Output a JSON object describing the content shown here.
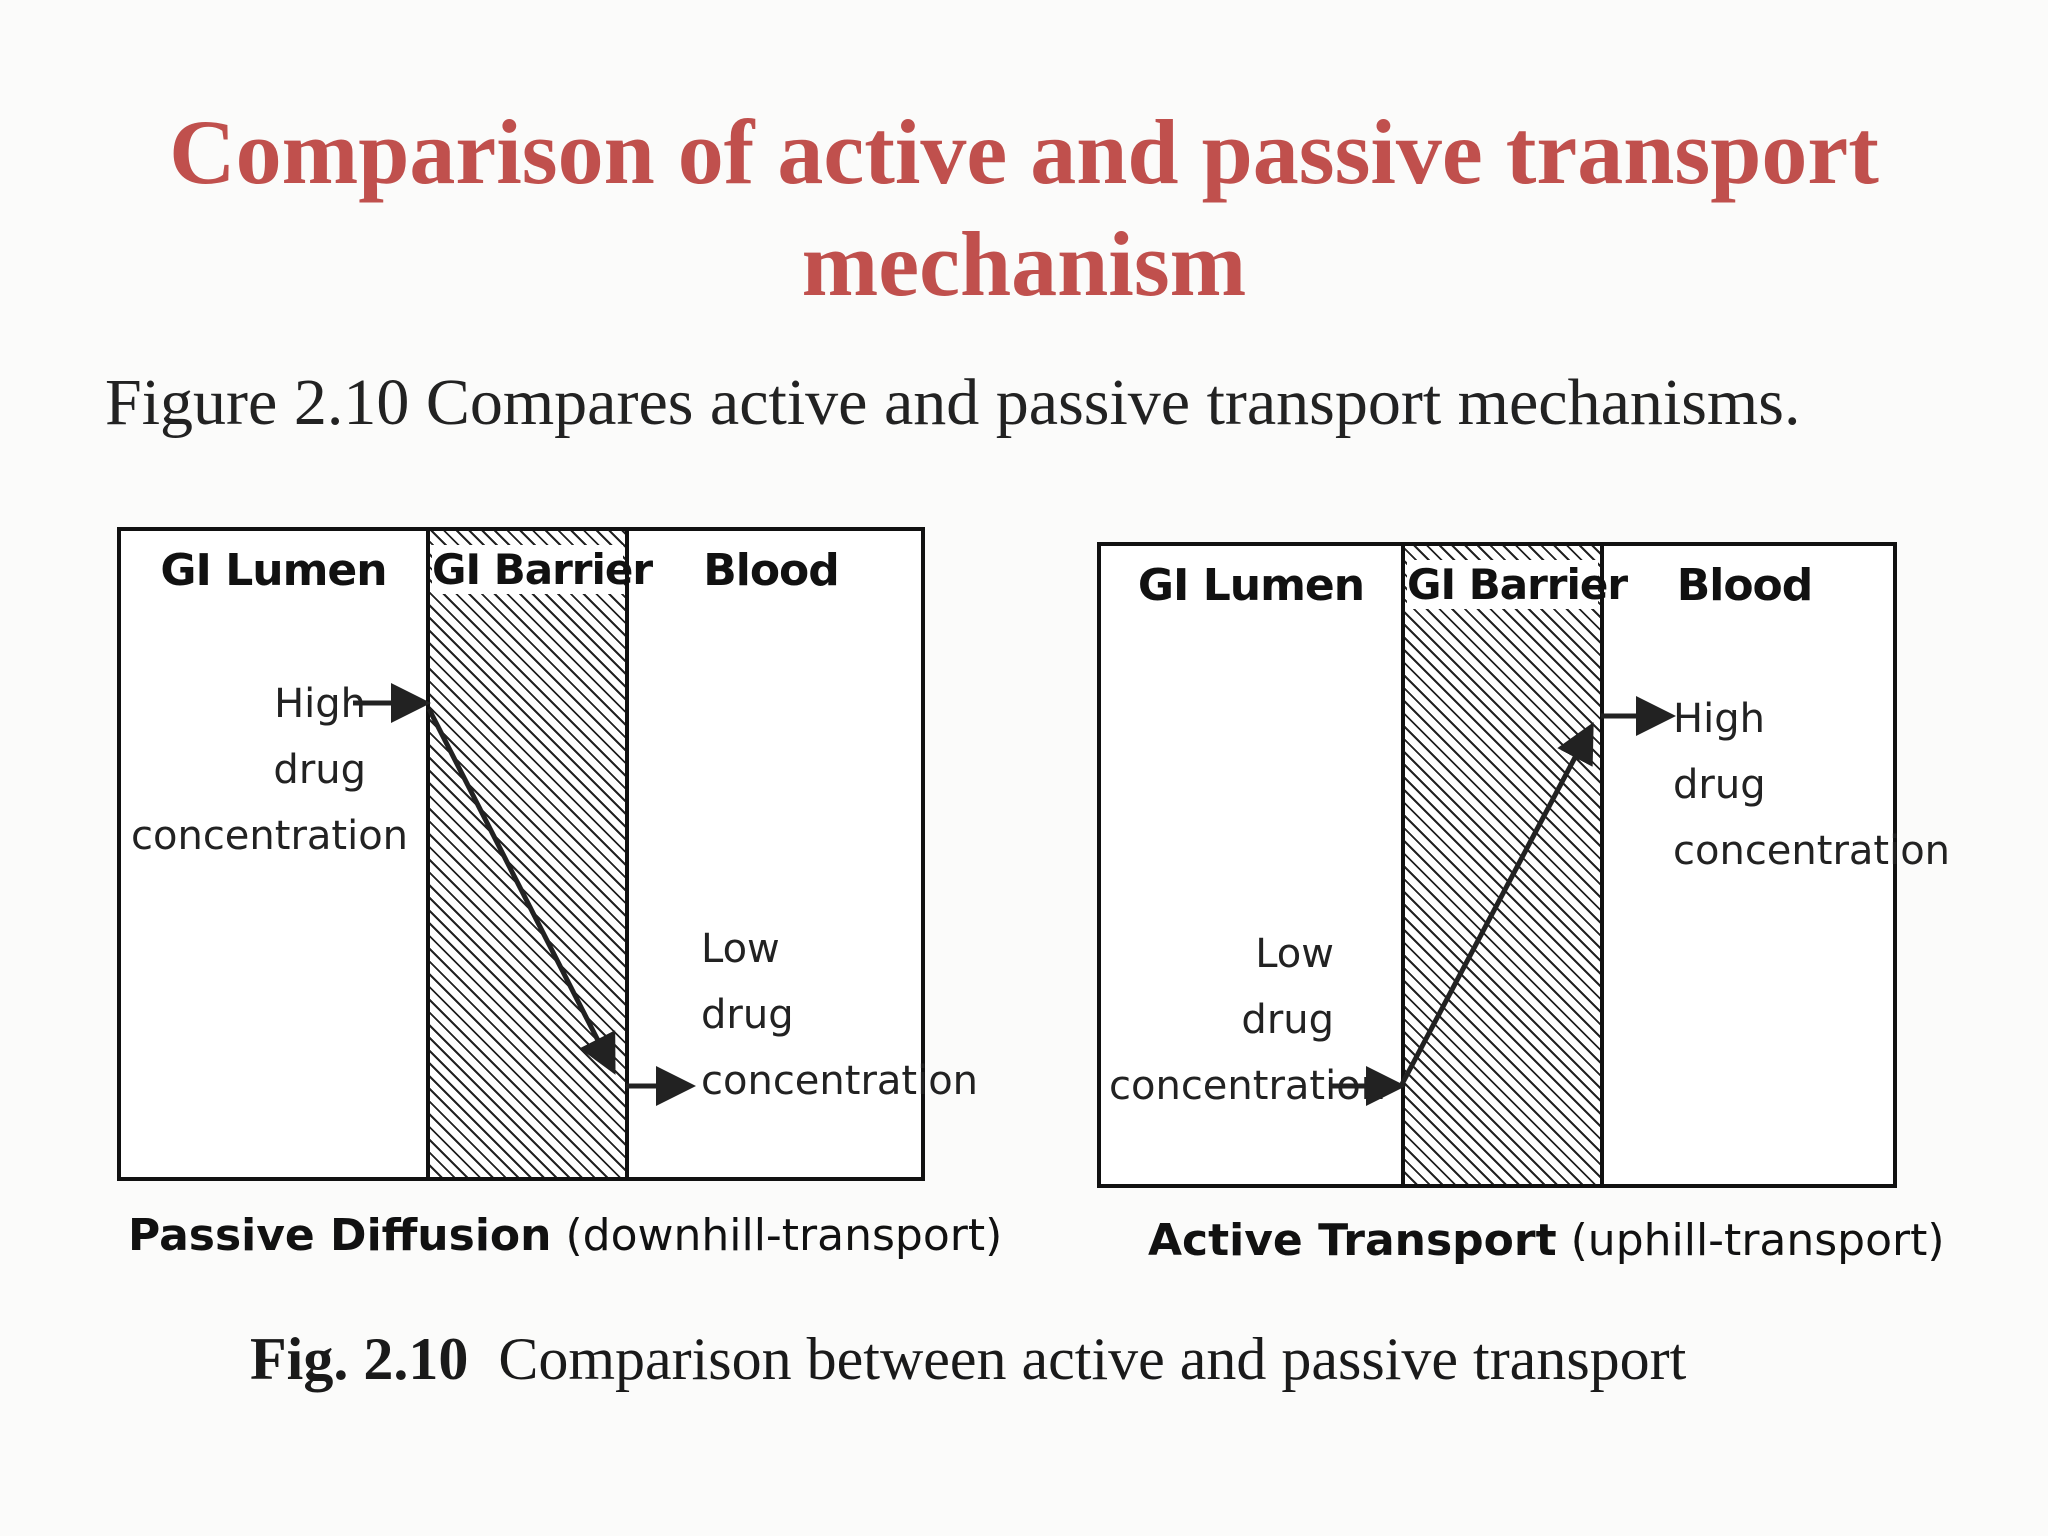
{
  "title": {
    "line1": "Comparison of active and passive transport",
    "line2": "mechanism"
  },
  "intro": "Figure 2.10 Compares active and passive transport mechanisms.",
  "passive": {
    "zones": {
      "lumen": "GI Lumen",
      "barrier": "GI Barrier",
      "blood": "Blood"
    },
    "high": [
      "High",
      "drug",
      "concentration"
    ],
    "low": [
      "Low",
      "drug",
      "concentration"
    ],
    "caption_bold": "Passive Diffusion",
    "caption_rest": "(downhill-transport)"
  },
  "active": {
    "zones": {
      "lumen": "GI Lumen",
      "barrier": "GI Barrier",
      "blood": "Blood"
    },
    "low": [
      "Low",
      "drug",
      "concentration"
    ],
    "high": [
      "High",
      "drug",
      "concentration"
    ],
    "caption_bold": "Active Transport",
    "caption_rest": "(uphill-transport)"
  },
  "figure_caption": {
    "label": "Fig. 2.10",
    "text": "Comparison between active and passive transport"
  }
}
